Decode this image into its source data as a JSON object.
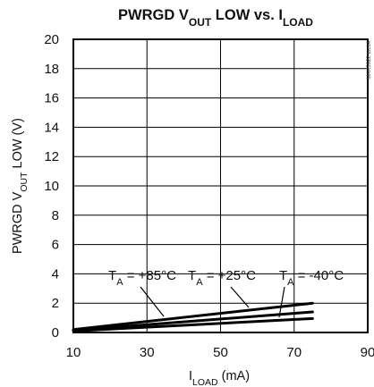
{
  "chart_data": {
    "type": "line",
    "title_parts": [
      {
        "text": "PWRGD V",
        "sub": false
      },
      {
        "text": "OUT",
        "sub": true
      },
      {
        "text": " LOW vs. I",
        "sub": false
      },
      {
        "text": "LOAD",
        "sub": true
      }
    ],
    "ylabel_parts": [
      {
        "text": "PWRGD V",
        "sub": false
      },
      {
        "text": "OUT",
        "sub": true
      },
      {
        "text": " LOW (V)",
        "sub": false
      }
    ],
    "xlabel_parts": [
      {
        "text": "I",
        "sub": false
      },
      {
        "text": "LOAD",
        "sub": true
      },
      {
        "text": " (mA)",
        "sub": false
      }
    ],
    "xlim": [
      10,
      90
    ],
    "ylim": [
      0,
      20
    ],
    "x_ticks": [
      10,
      30,
      50,
      70,
      90
    ],
    "y_ticks": [
      0,
      2,
      4,
      6,
      8,
      10,
      12,
      14,
      16,
      18,
      20
    ],
    "grid": true,
    "watermark": "MAX5922 toc14",
    "series": [
      {
        "name_parts": [
          {
            "text": "T",
            "sub": false
          },
          {
            "text": "A",
            "sub": true
          },
          {
            "text": " = +85°C",
            "sub": false
          }
        ],
        "x": [
          10,
          75
        ],
        "y": [
          0.2,
          2.0
        ]
      },
      {
        "name_parts": [
          {
            "text": "T",
            "sub": false
          },
          {
            "text": "A",
            "sub": true
          },
          {
            "text": " = +25°C",
            "sub": false
          }
        ],
        "x": [
          10,
          75
        ],
        "y": [
          0.15,
          1.4
        ]
      },
      {
        "name_parts": [
          {
            "text": "T",
            "sub": false
          },
          {
            "text": "A",
            "sub": true
          },
          {
            "text": " = -40°C",
            "sub": false
          }
        ],
        "x": [
          10,
          75
        ],
        "y": [
          0.1,
          0.95
        ]
      }
    ]
  }
}
